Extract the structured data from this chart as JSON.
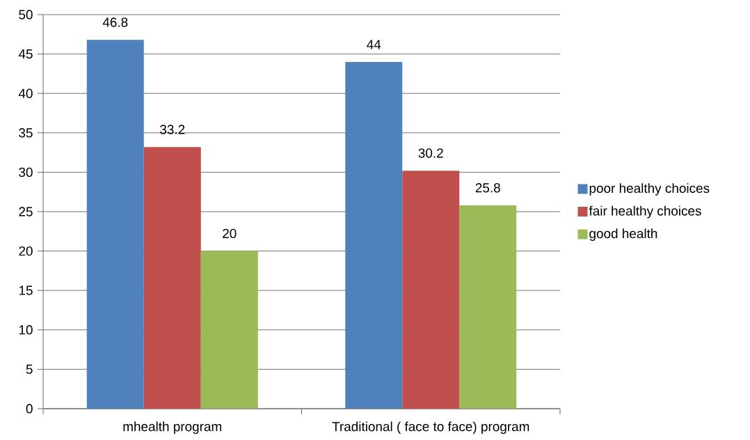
{
  "chart_data": {
    "type": "bar",
    "categories": [
      "mhealth program",
      "Traditional ( face to face) program"
    ],
    "series": [
      {
        "name": "poor healthy choices",
        "color": "#4f81bd",
        "values": [
          46.8,
          44
        ]
      },
      {
        "name": "fair healthy choices",
        "color": "#c0504d",
        "values": [
          33.2,
          30.2
        ]
      },
      {
        "name": "good health",
        "color": "#9bbb59",
        "values": [
          20,
          25.8
        ]
      }
    ],
    "ylim": [
      0,
      50
    ],
    "yticks": [
      0,
      5,
      10,
      15,
      20,
      25,
      30,
      35,
      40,
      45,
      50
    ],
    "grid": "y",
    "legend": "right",
    "data_labels": true
  }
}
